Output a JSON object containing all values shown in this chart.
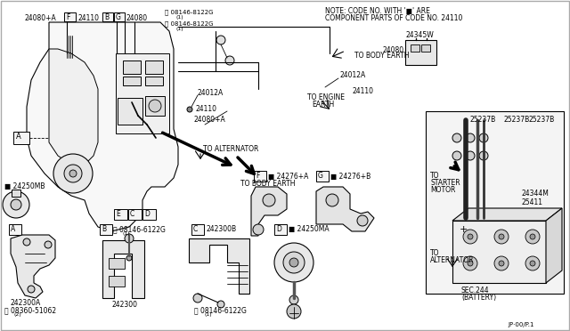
{
  "bg_color": "#ffffff",
  "line_color": "#000000",
  "gray_fill": "#e8e8e8",
  "light_fill": "#f4f4f4",
  "note_line1": "NOTE: CODE NO. WITH ’■’ ARE",
  "note_line2": "COMPONENT PARTS OF CODE NO. 24110",
  "footer": "JP·00/P.1",
  "fig_width": 6.4,
  "fig_height": 3.72,
  "dpi": 100
}
